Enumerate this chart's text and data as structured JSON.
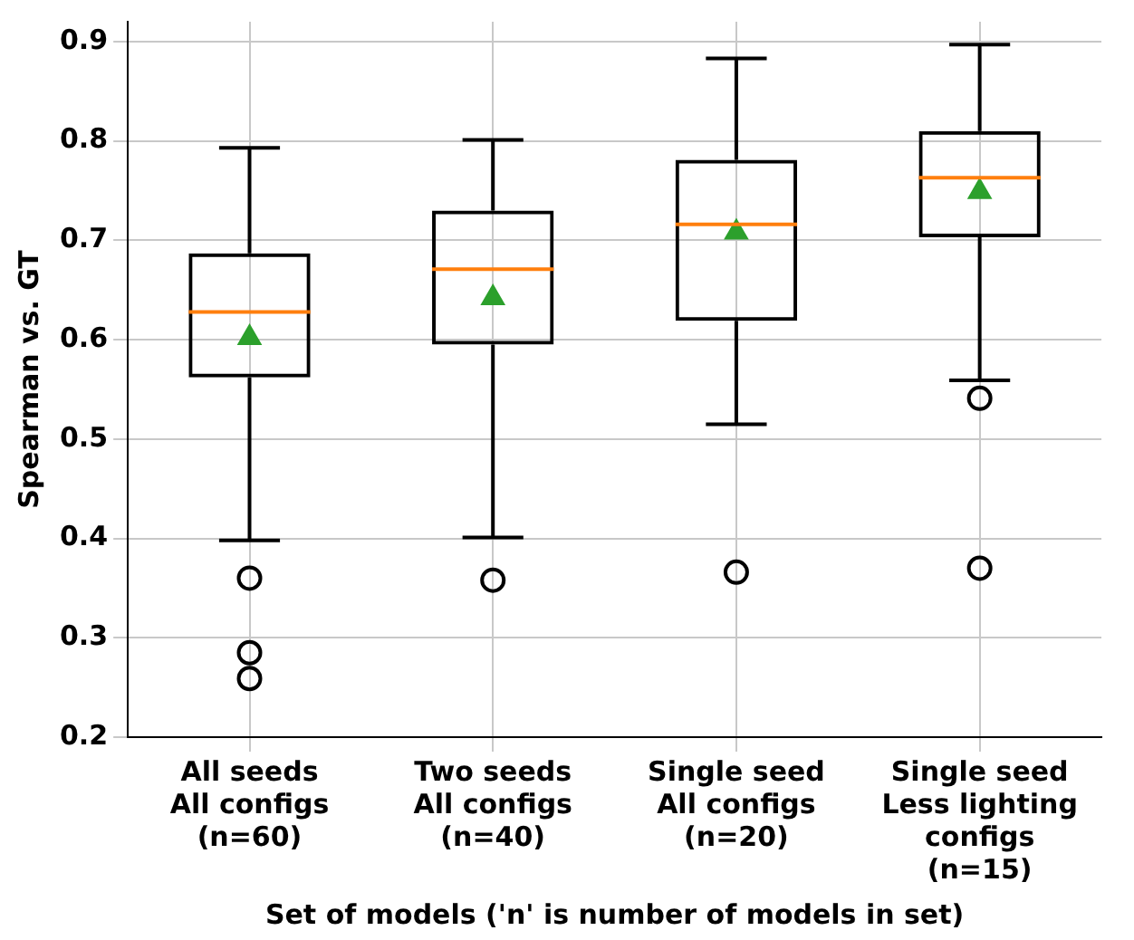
{
  "chart_data": {
    "type": "box",
    "xlabel": "Set of models ('n' is number of models in set)",
    "ylabel": "Spearman vs. GT",
    "categories": [
      "All seeds\nAll configs\n(n=60)",
      "Two seeds\nAll configs\n(n=40)",
      "Single seed\nAll configs\n(n=20)",
      "Single seed\nLess lighting\nconfigs\n(n=15)"
    ],
    "boxes": [
      {
        "low": 0.398,
        "q1": 0.562,
        "median": 0.628,
        "q3": 0.687,
        "high": 0.793,
        "mean": 0.602,
        "outliers": [
          0.36,
          0.285,
          0.259
        ]
      },
      {
        "low": 0.401,
        "q1": 0.595,
        "median": 0.671,
        "q3": 0.73,
        "high": 0.801,
        "mean": 0.642,
        "outliers": [
          0.358
        ]
      },
      {
        "low": 0.515,
        "q1": 0.619,
        "median": 0.716,
        "q3": 0.781,
        "high": 0.883,
        "mean": 0.708,
        "outliers": [
          0.366
        ]
      },
      {
        "low": 0.559,
        "q1": 0.703,
        "median": 0.763,
        "q3": 0.81,
        "high": 0.897,
        "mean": 0.749,
        "outliers": [
          0.541,
          0.37
        ]
      }
    ],
    "color": "#000000",
    "ylim": [
      0.2,
      0.92
    ],
    "yticks": [
      0.2,
      0.3,
      0.4,
      0.5,
      0.6,
      0.7,
      0.8,
      0.9
    ],
    "grid": true,
    "legend": false
  }
}
